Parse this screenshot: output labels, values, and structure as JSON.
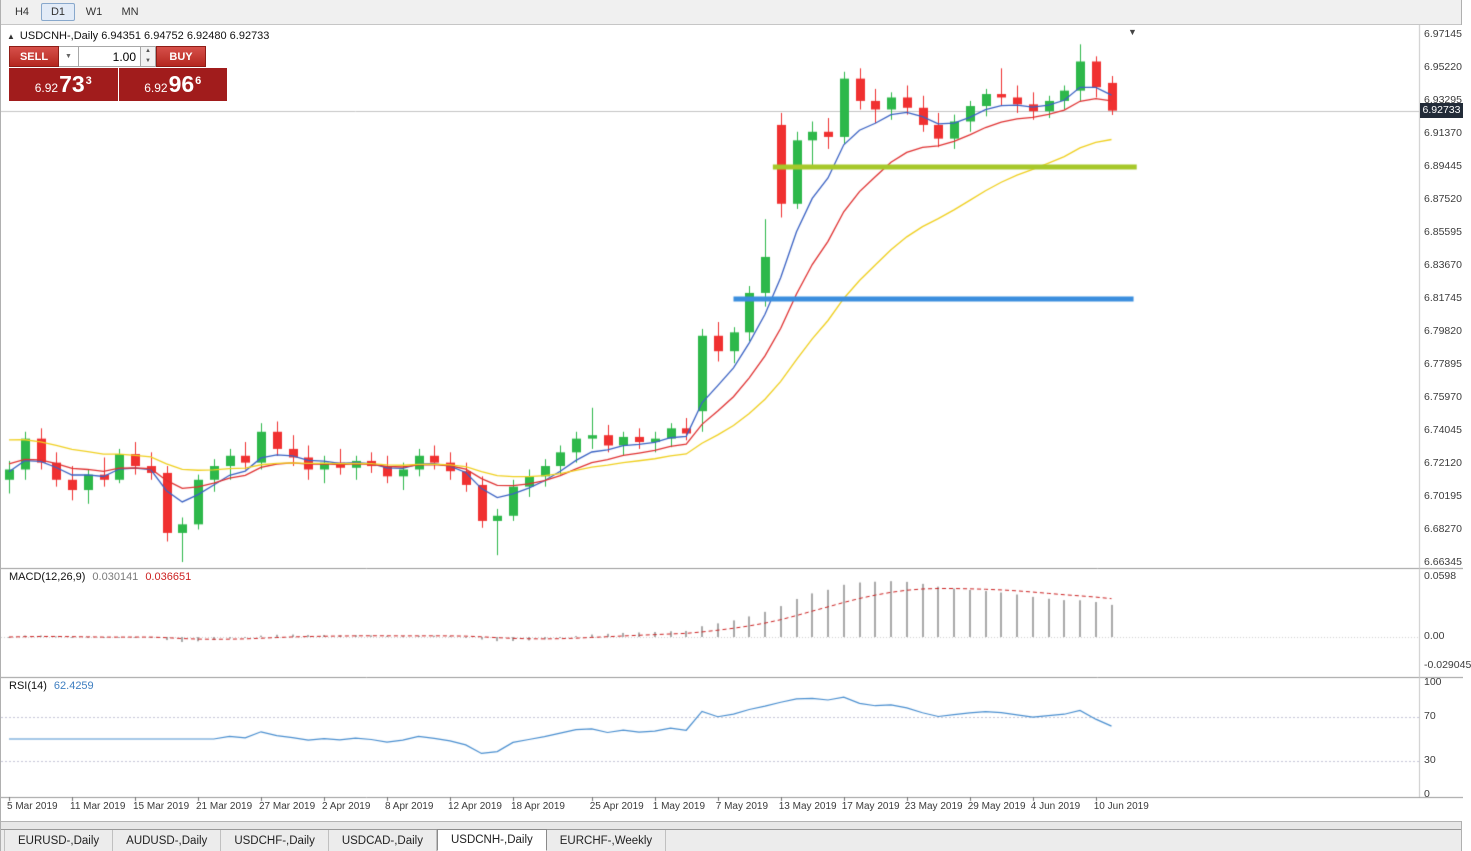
{
  "toolbar": {
    "timeframes": [
      {
        "label": "H4",
        "active": false
      },
      {
        "label": "D1",
        "active": true
      },
      {
        "label": "W1",
        "active": false
      },
      {
        "label": "MN",
        "active": false
      }
    ]
  },
  "chart": {
    "collapse_marker": "▲",
    "scroll_marker": "▼",
    "ohlc_header": "USDCNH-,Daily 6.94351 6.94752 6.92480 6.92733",
    "one_click": {
      "sell_label": "SELL",
      "buy_label": "BUY",
      "volume": "1.00",
      "sell_price": {
        "prefix": "6.92",
        "big": "73",
        "sup": "3"
      },
      "buy_price": {
        "prefix": "6.92",
        "big": "96",
        "sup": "6"
      }
    },
    "current_price_badge": "6.92733",
    "price_axis_labels": [
      "6.97145",
      "6.95220",
      "6.93295",
      "6.91370",
      "6.89445",
      "6.87520",
      "6.85595",
      "6.83670",
      "6.81745",
      "6.79820",
      "6.77895",
      "6.75970",
      "6.74045",
      "6.72120",
      "6.70195",
      "6.68270",
      "6.66345"
    ],
    "macd": {
      "header": "MACD(12,26,9)",
      "value_main": "0.030141",
      "value_signal": "0.036651",
      "axis_labels": [
        {
          "text": "0.0598",
          "value": 0.0598
        },
        {
          "text": "0.00",
          "value": 0
        },
        {
          "text": "-0.029045",
          "value": -0.029045
        }
      ]
    },
    "rsi": {
      "header": "RSI(14)",
      "value": "62.4259",
      "axis_labels": [
        {
          "text": "100",
          "value": 100
        },
        {
          "text": "70",
          "value": 70
        },
        {
          "text": "30",
          "value": 30
        },
        {
          "text": "0",
          "value": 0
        }
      ]
    },
    "date_ticks": [
      {
        "label": "5 Mar 2019",
        "index": 0
      },
      {
        "label": "11 Mar 2019",
        "index": 4
      },
      {
        "label": "15 Mar 2019",
        "index": 8
      },
      {
        "label": "21 Mar 2019",
        "index": 12
      },
      {
        "label": "27 Mar 2019",
        "index": 16
      },
      {
        "label": "2 Apr 2019",
        "index": 20
      },
      {
        "label": "8 Apr 2019",
        "index": 24
      },
      {
        "label": "12 Apr 2019",
        "index": 28
      },
      {
        "label": "18 Apr 2019",
        "index": 32
      },
      {
        "label": "25 Apr 2019",
        "index": 37
      },
      {
        "label": "1 May 2019",
        "index": 41
      },
      {
        "label": "7 May 2019",
        "index": 45
      },
      {
        "label": "13 May 2019",
        "index": 49
      },
      {
        "label": "17 May 2019",
        "index": 53
      },
      {
        "label": "23 May 2019",
        "index": 57
      },
      {
        "label": "29 May 2019",
        "index": 61
      },
      {
        "label": "4 Jun 2019",
        "index": 65
      },
      {
        "label": "10 Jun 2019",
        "index": 69
      }
    ]
  },
  "chart_data": {
    "type": "candlestick",
    "symbol": "USDCNH-",
    "timeframe": "Daily",
    "current_bar": {
      "open": 6.94351,
      "high": 6.94752,
      "low": 6.9248,
      "close": 6.92733
    },
    "price_range": {
      "top": 6.97145,
      "bottom": 6.66345,
      "tick_step": 0.01925
    },
    "bull_color": "#2db84a",
    "bear_color": "#f03030",
    "columns": [
      "date",
      "open",
      "high",
      "low",
      "close"
    ],
    "candles": [
      [
        "5 Mar",
        6.712,
        6.723,
        6.704,
        6.718
      ],
      [
        "6 Mar",
        6.718,
        6.74,
        6.712,
        6.736
      ],
      [
        "7 Mar",
        6.736,
        6.742,
        6.718,
        6.722
      ],
      [
        "8 Mar",
        6.722,
        6.728,
        6.708,
        6.712
      ],
      [
        "11 Mar",
        6.712,
        6.72,
        6.7,
        6.706
      ],
      [
        "12 Mar",
        6.706,
        6.718,
        6.698,
        6.715
      ],
      [
        "13 Mar",
        6.715,
        6.725,
        6.708,
        6.712
      ],
      [
        "14 Mar",
        6.712,
        6.73,
        6.71,
        6.727
      ],
      [
        "15 Mar",
        6.727,
        6.734,
        6.715,
        6.72
      ],
      [
        "18 Mar",
        6.72,
        6.728,
        6.712,
        6.716
      ],
      [
        "19 Mar",
        6.716,
        6.72,
        6.676,
        6.681
      ],
      [
        "20 Mar",
        6.681,
        6.69,
        6.664,
        6.686
      ],
      [
        "21 Mar",
        6.686,
        6.715,
        6.683,
        6.712
      ],
      [
        "22 Mar",
        6.712,
        6.724,
        6.705,
        6.72
      ],
      [
        "25 Mar",
        6.72,
        6.73,
        6.712,
        6.726
      ],
      [
        "26 Mar",
        6.726,
        6.734,
        6.718,
        6.722
      ],
      [
        "27 Mar",
        6.722,
        6.745,
        6.718,
        6.74
      ],
      [
        "28 Mar",
        6.74,
        6.746,
        6.726,
        6.73
      ],
      [
        "29 Mar",
        6.73,
        6.738,
        6.72,
        6.725
      ],
      [
        "1 Apr",
        6.725,
        6.732,
        6.712,
        6.718
      ],
      [
        "2 Apr",
        6.718,
        6.726,
        6.71,
        6.722
      ],
      [
        "3 Apr",
        6.722,
        6.73,
        6.715,
        6.719
      ],
      [
        "4 Apr",
        6.719,
        6.726,
        6.712,
        6.723
      ],
      [
        "5 Apr",
        6.723,
        6.728,
        6.716,
        6.72
      ],
      [
        "8 Apr",
        6.72,
        6.726,
        6.71,
        6.714
      ],
      [
        "9 Apr",
        6.714,
        6.722,
        6.706,
        6.718
      ],
      [
        "10 Apr",
        6.718,
        6.73,
        6.714,
        6.726
      ],
      [
        "11 Apr",
        6.726,
        6.732,
        6.718,
        6.722
      ],
      [
        "12 Apr",
        6.722,
        6.728,
        6.712,
        6.717
      ],
      [
        "15 Apr",
        6.717,
        6.722,
        6.705,
        6.709
      ],
      [
        "16 Apr",
        6.709,
        6.714,
        6.684,
        6.688
      ],
      [
        "17 Apr",
        6.688,
        6.695,
        6.668,
        6.691
      ],
      [
        "18 Apr",
        6.691,
        6.712,
        6.688,
        6.708
      ],
      [
        "19 Apr",
        6.708,
        6.718,
        6.702,
        6.714
      ],
      [
        "22 Apr",
        6.714,
        6.724,
        6.708,
        6.72
      ],
      [
        "23 Apr",
        6.72,
        6.732,
        6.715,
        6.728
      ],
      [
        "24 Apr",
        6.728,
        6.74,
        6.722,
        6.736
      ],
      [
        "25 Apr",
        6.736,
        6.754,
        6.73,
        6.738
      ],
      [
        "26 Apr",
        6.738,
        6.744,
        6.728,
        6.732
      ],
      [
        "29 Apr",
        6.732,
        6.74,
        6.726,
        6.737
      ],
      [
        "30 Apr",
        6.737,
        6.742,
        6.73,
        6.734
      ],
      [
        "1 May",
        6.734,
        6.74,
        6.728,
        6.736
      ],
      [
        "2 May",
        6.736,
        6.745,
        6.731,
        6.742
      ],
      [
        "3 May",
        6.742,
        6.748,
        6.735,
        6.739
      ],
      [
        "6 May",
        6.752,
        6.8,
        6.74,
        6.796
      ],
      [
        "7 May",
        6.796,
        6.804,
        6.781,
        6.787
      ],
      [
        "8 May",
        6.787,
        6.801,
        6.78,
        6.798
      ],
      [
        "9 May",
        6.798,
        6.825,
        6.793,
        6.821
      ],
      [
        "10 May",
        6.821,
        6.864,
        6.813,
        6.842
      ],
      [
        "13 May",
        6.919,
        6.926,
        6.865,
        6.873
      ],
      [
        "14 May",
        6.873,
        6.915,
        6.87,
        6.91
      ],
      [
        "15 May",
        6.91,
        6.921,
        6.895,
        6.915
      ],
      [
        "16 May",
        6.915,
        6.923,
        6.905,
        6.912
      ],
      [
        "17 May",
        6.912,
        6.95,
        6.908,
        6.946
      ],
      [
        "20 May",
        6.946,
        6.952,
        6.928,
        6.933
      ],
      [
        "21 May",
        6.933,
        6.94,
        6.92,
        6.928
      ],
      [
        "22 May",
        6.928,
        6.938,
        6.922,
        6.935
      ],
      [
        "23 May",
        6.935,
        6.942,
        6.925,
        6.929
      ],
      [
        "24 May",
        6.929,
        6.936,
        6.915,
        6.919
      ],
      [
        "27 May",
        6.919,
        6.926,
        6.906,
        6.911
      ],
      [
        "28 May",
        6.911,
        6.925,
        6.905,
        6.921
      ],
      [
        "29 May",
        6.921,
        6.933,
        6.915,
        6.93
      ],
      [
        "30 May",
        6.93,
        6.94,
        6.924,
        6.937
      ],
      [
        "31 May",
        6.937,
        6.952,
        6.93,
        6.935
      ],
      [
        "3 Jun",
        6.935,
        6.942,
        6.926,
        6.931
      ],
      [
        "4 Jun",
        6.931,
        6.938,
        6.922,
        6.927
      ],
      [
        "5 Jun",
        6.927,
        6.936,
        6.923,
        6.933
      ],
      [
        "6 Jun",
        6.933,
        6.942,
        6.928,
        6.939
      ],
      [
        "7 Jun",
        6.939,
        6.966,
        6.933,
        6.956
      ],
      [
        "10 Jun",
        6.956,
        6.959,
        6.935,
        6.941
      ],
      [
        "11 Jun",
        6.94351,
        6.94752,
        6.9248,
        6.92733
      ]
    ],
    "moving_averages": [
      {
        "name": "fast",
        "period": 5,
        "color": "#3a62c4",
        "seed": 6.716
      },
      {
        "name": "medium",
        "period": 10,
        "color": "#e03131",
        "seed": 6.722
      },
      {
        "name": "slow",
        "period": 21,
        "color": "#f0d020",
        "seed": 6.737
      }
    ],
    "trend_lines": [
      {
        "price": 6.89445,
        "start_index": 48.5,
        "end_index": 71.6,
        "color": "#a6c califa",
        "width": 5
      },
      {
        "price": 6.81745,
        "start_index": 46.0,
        "end_index": 71.4,
        "color": "#3b8ede",
        "width": 5
      }
    ],
    "indicators": {
      "macd": {
        "params": [
          12,
          26,
          9
        ],
        "main": 0.030141,
        "signal": 0.036651,
        "scale_max": 0.0598,
        "scale_min": -0.029045,
        "histogram_color": "#a9a9a9",
        "signal_color": "#cc2222"
      },
      "rsi": {
        "period": 14,
        "value": 62.4259,
        "levels": [
          70,
          30
        ],
        "line_color": "#4a8fd0"
      }
    }
  },
  "bottom_tabs": {
    "tabs": [
      {
        "label": "EURUSD-,Daily",
        "active": false
      },
      {
        "label": "AUDUSD-,Daily",
        "active": false
      },
      {
        "label": "USDCHF-,Daily",
        "active": false
      },
      {
        "label": "USDCAD-,Daily",
        "active": false
      },
      {
        "label": "USDCNH-,Daily",
        "active": true
      },
      {
        "label": "EURCHF-,Weekly",
        "active": false
      }
    ]
  }
}
